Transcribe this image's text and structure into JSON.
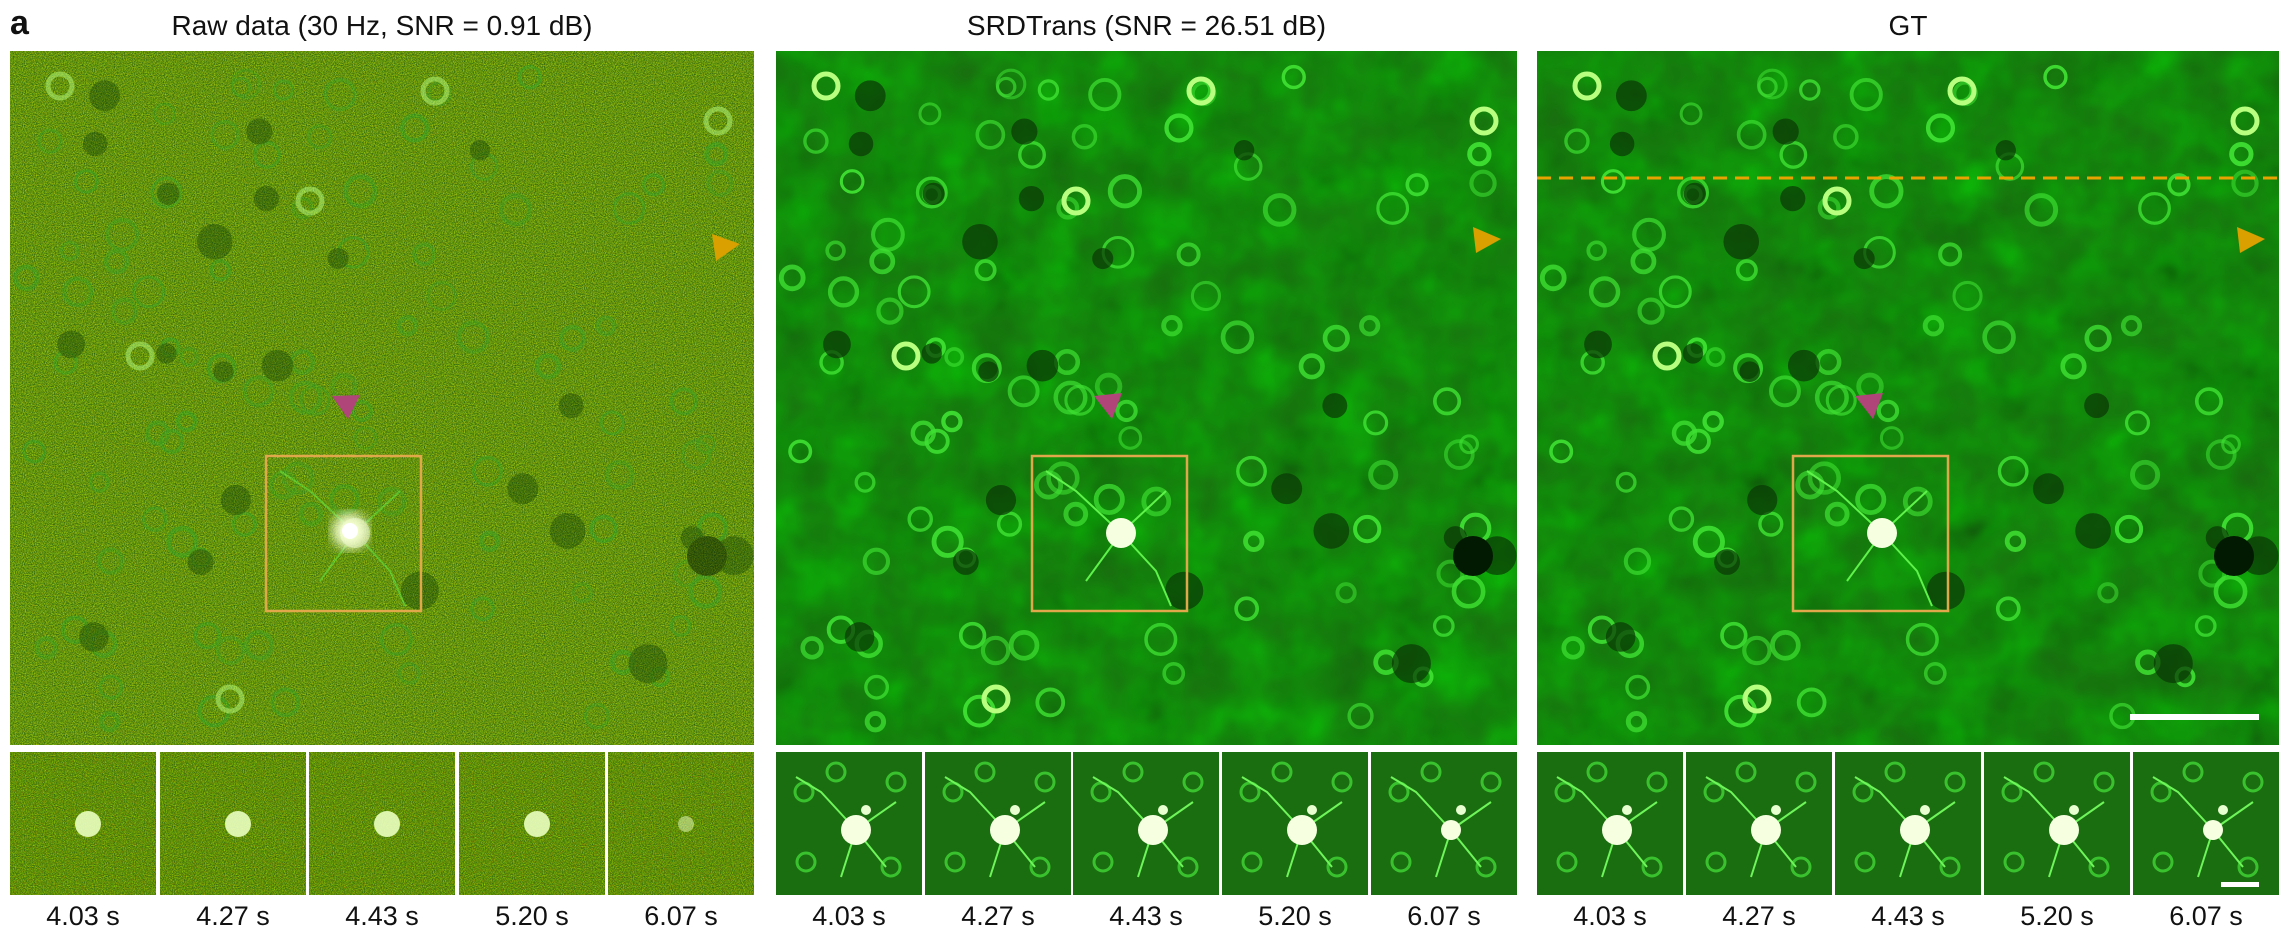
{
  "panel_label": "a",
  "columns": [
    {
      "id": "raw",
      "title": "Raw data (30 Hz, SNR = 0.91 dB)"
    },
    {
      "id": "srdtrans",
      "title": "SRDTrans (SNR = 26.51 dB)"
    },
    {
      "id": "gt",
      "title": "GT"
    }
  ],
  "time_labels": [
    "4.03 s",
    "4.27 s",
    "4.43 s",
    "5.20 s",
    "6.07 s"
  ],
  "colors": {
    "background_green": "#0e4a0a",
    "cell_green": "#39d12e",
    "roi_box": "#e0a84a",
    "arrow_orange": "#d9a000",
    "arrow_magenta": "#b0457a",
    "dashed_line": "#e8a300",
    "scale_bar": "#ffffff"
  }
}
